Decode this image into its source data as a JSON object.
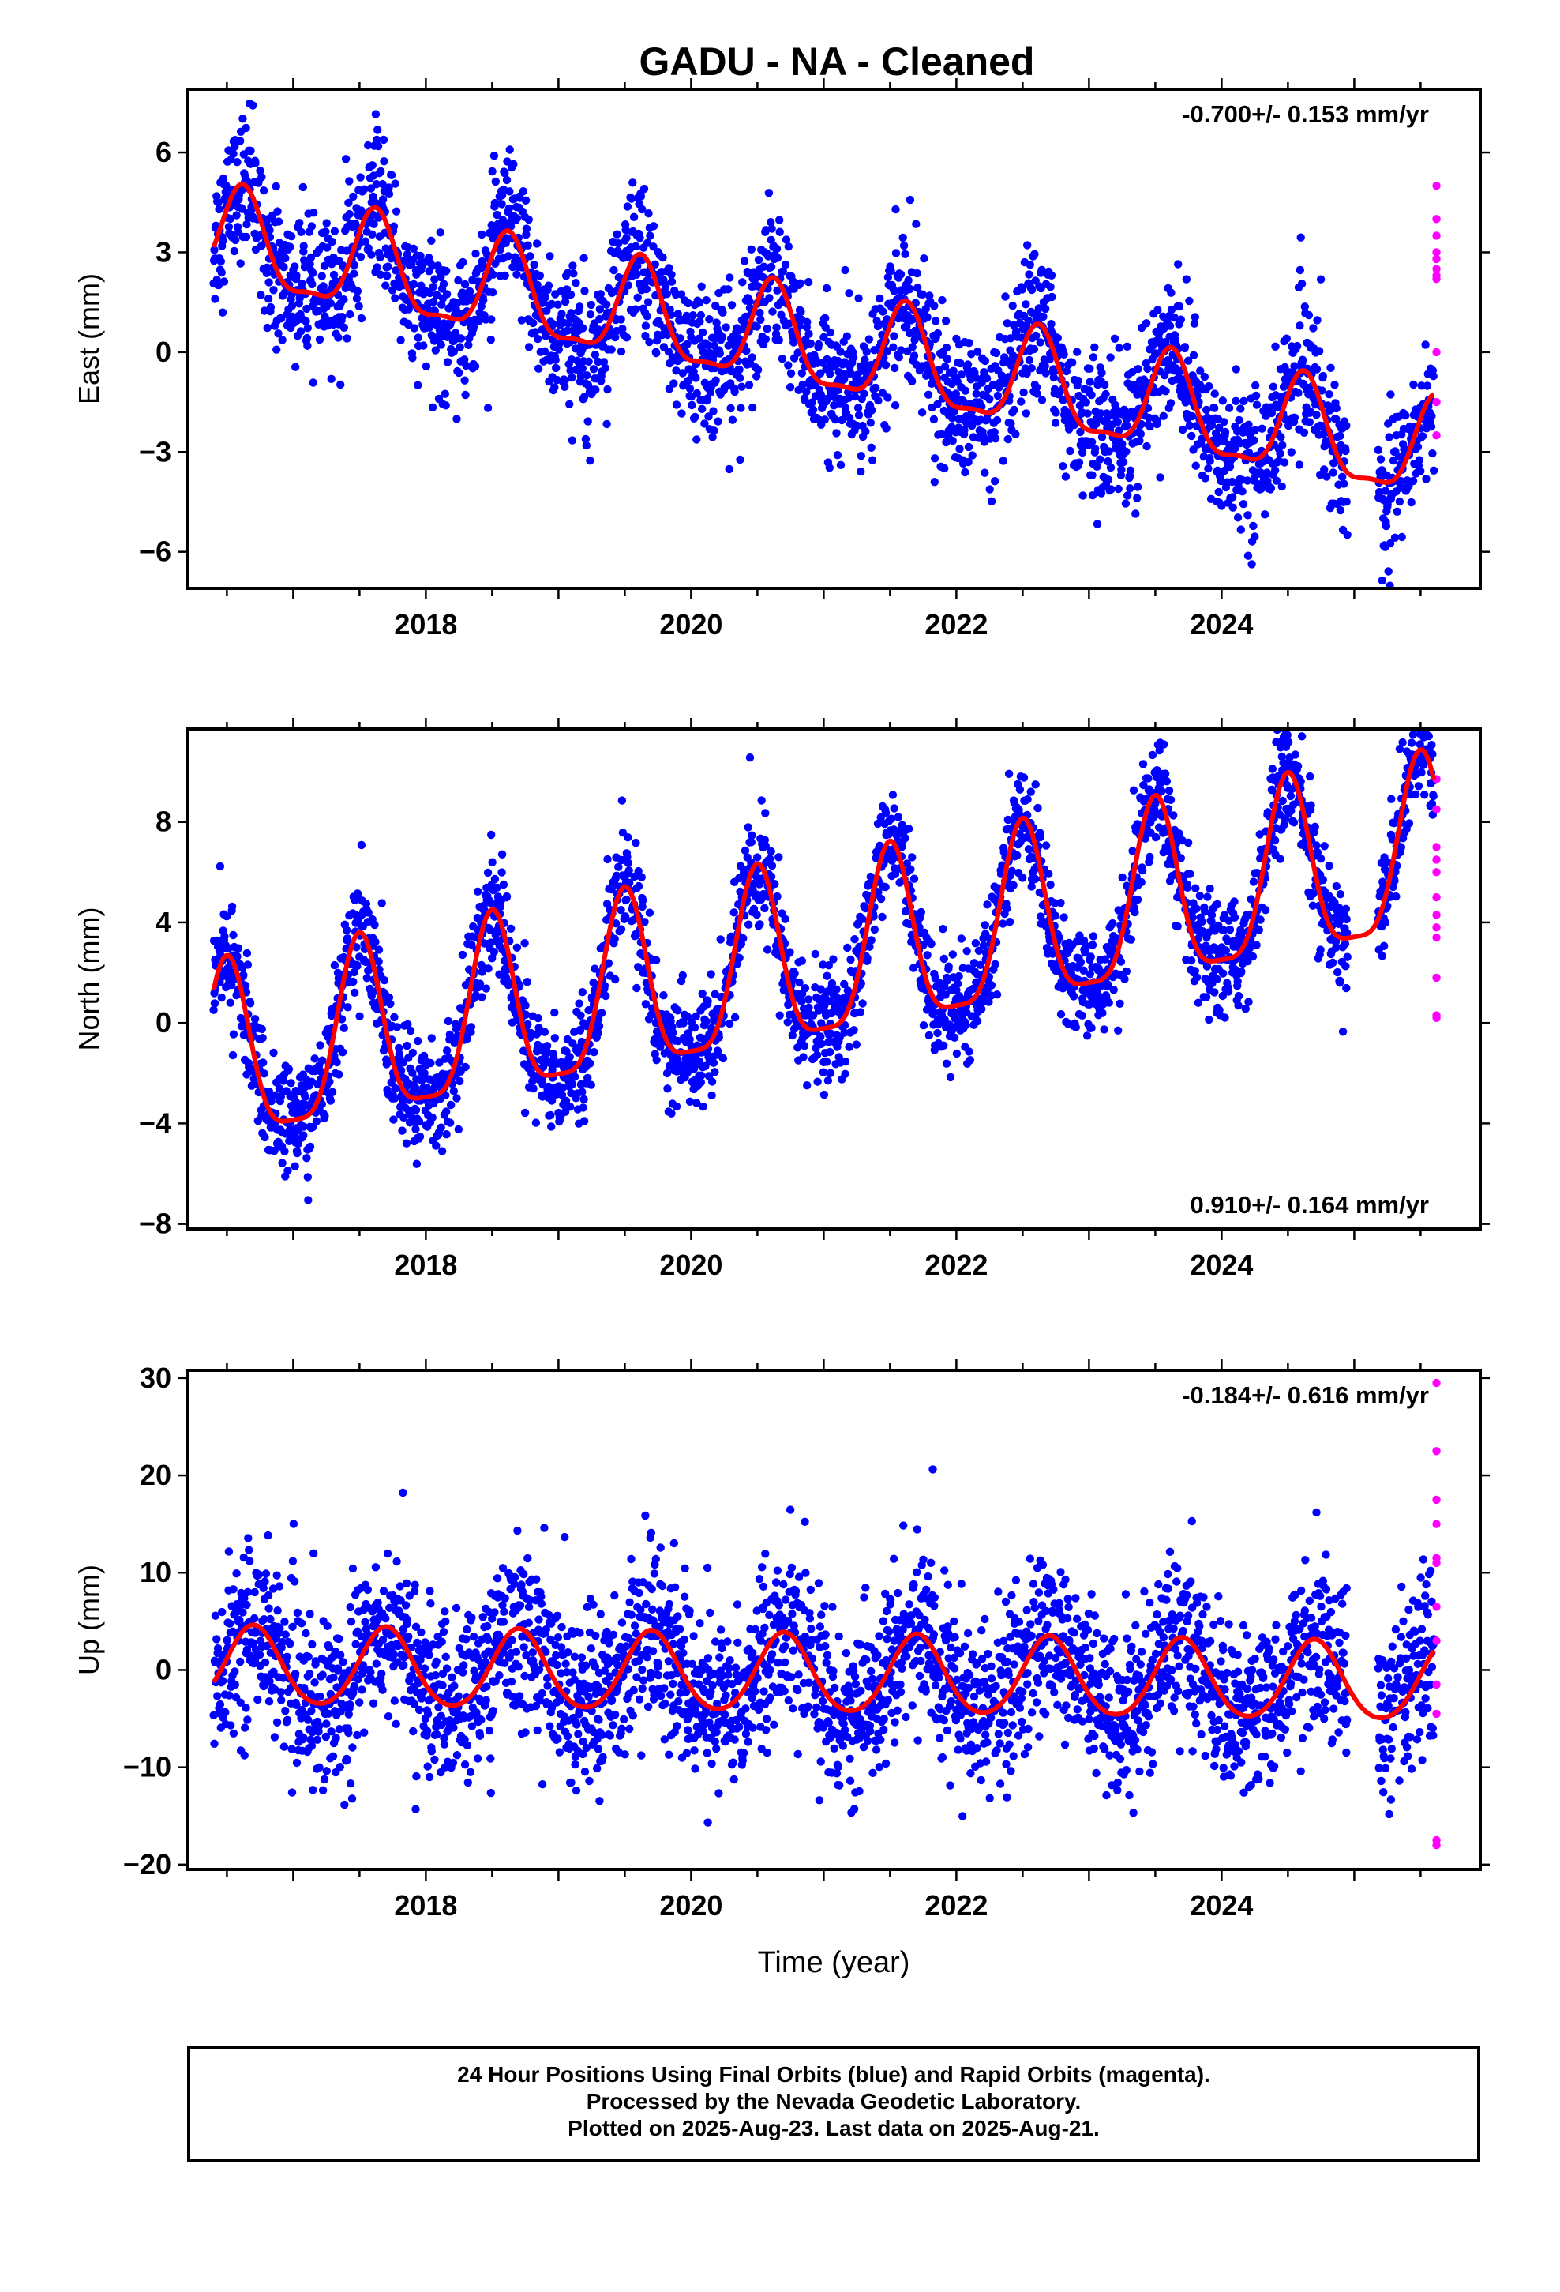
{
  "title": "GADU  - NA - Cleaned",
  "colors": {
    "final_orbits": "#0000ff",
    "rapid_orbits": "#ff00ff",
    "model": "#ff0000",
    "axes": "#000000"
  },
  "chart_data": [
    {
      "type": "scatter",
      "panel": "east",
      "ylabel": "East (mm)",
      "xlabel": "",
      "annotation": "-0.700+/- 0.153 mm/yr",
      "annotation_position": "top-right",
      "xlim": [
        2016.2,
        2025.95
      ],
      "ylim": [
        -7.1,
        7.9
      ],
      "xticks": [
        2018,
        2020,
        2022,
        2024
      ],
      "yticks": [
        -6,
        -3,
        0,
        3,
        6
      ],
      "model": {
        "start": 2016.4,
        "end": 2025.6,
        "rate": -0.7,
        "offset": 3.3,
        "annual_amplitude": 1.45,
        "peak_phase": 0.62,
        "semiannual_amplitude": 0.45,
        "noise": 1.05
      },
      "rapid_orbit_values": [
        5.0,
        4.0,
        3.5,
        3.0,
        2.8,
        2.5,
        2.3,
        2.2,
        0.0,
        -1.5,
        -2.5
      ],
      "series": [
        {
          "name": "Final Orbits",
          "color": "#0000ff"
        },
        {
          "name": "Rapid Orbits",
          "color": "#ff00ff"
        },
        {
          "name": "",
          "color": "#ff0000"
        }
      ]
    },
    {
      "type": "scatter",
      "panel": "north",
      "ylabel": "North (mm)",
      "xlabel": "",
      "annotation": "0.910+/- 0.164 mm/yr",
      "annotation_position": "bottom-right",
      "xlim": [
        2016.2,
        2025.95
      ],
      "ylim": [
        -8.2,
        11.7
      ],
      "xticks": [
        2018,
        2020,
        2022,
        2024
      ],
      "yticks": [
        -8,
        -4,
        0,
        4,
        8
      ],
      "model": {
        "start": 2016.4,
        "end": 2025.6,
        "rate": 0.91,
        "offset": -1.8,
        "annual_amplitude": 3.5,
        "peak_phase": 0.5,
        "semiannual_amplitude": 0.9,
        "noise": 1.1
      },
      "rapid_orbit_values": [
        9.7,
        8.5,
        7.0,
        6.5,
        6.0,
        5.0,
        4.3,
        3.8,
        3.4,
        1.8,
        0.3,
        0.2
      ],
      "series": [
        {
          "name": "Final Orbits",
          "color": "#0000ff"
        },
        {
          "name": "Rapid Orbits",
          "color": "#ff00ff"
        },
        {
          "name": "",
          "color": "#ff0000"
        }
      ]
    },
    {
      "type": "scatter",
      "panel": "up",
      "ylabel": "Up (mm)",
      "xlabel": "Time (year)",
      "annotation": "-0.184+/- 0.616 mm/yr",
      "annotation_position": "top-right",
      "xlim": [
        2016.2,
        2025.95
      ],
      "ylim": [
        -20.5,
        30.8
      ],
      "xticks": [
        2018,
        2020,
        2022,
        2024
      ],
      "yticks": [
        -20,
        -10,
        0,
        10,
        20,
        30
      ],
      "model": {
        "start": 2016.4,
        "end": 2025.6,
        "rate": -0.184,
        "offset": 0.3,
        "annual_amplitude": 4.0,
        "peak_phase": 0.7,
        "semiannual_amplitude": 0.4,
        "noise": 4.3
      },
      "rapid_orbit_values": [
        29.5,
        22.5,
        17.5,
        15.0,
        11.5,
        11.0,
        6.5,
        3.0,
        -1.5,
        -4.5,
        -17.5,
        -18.0
      ],
      "series": [
        {
          "name": "Final Orbits",
          "color": "#0000ff"
        },
        {
          "name": "Rapid Orbits",
          "color": "#ff00ff"
        },
        {
          "name": "",
          "color": "#ff0000"
        }
      ]
    }
  ],
  "caption": {
    "line1": "24 Hour Positions Using Final Orbits (blue) and Rapid Orbits (magenta).",
    "line2": "Processed by the Nevada Geodetic Laboratory.",
    "line3": "Plotted on 2025-Aug-23. Last data on 2025-Aug-21."
  }
}
